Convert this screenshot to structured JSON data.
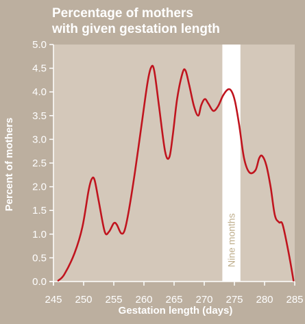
{
  "chart_data": {
    "type": "line",
    "title_lines": [
      "Percentage of mothers",
      "with given gestation length"
    ],
    "xlabel": "Gestation length (days)",
    "ylabel": "Percent of mothers",
    "xlim": [
      245,
      285
    ],
    "ylim": [
      0,
      5
    ],
    "xticks": [
      245,
      250,
      255,
      260,
      265,
      270,
      275,
      280,
      285
    ],
    "yticks": [
      "0.0",
      "0.5",
      "1.0",
      "1.5",
      "2.0",
      "2.5",
      "3.0",
      "3.5",
      "4.0",
      "4.5",
      "5.0"
    ],
    "highlight_band": {
      "from": 273,
      "to": 276,
      "label": "Nine months"
    },
    "colors": {
      "background": "#bcaf9f",
      "plot_area": "#d4c8ba",
      "line": "#c0141e",
      "band": "#ffffff",
      "band_label": "#bfae8c"
    },
    "series": [
      {
        "x": [
          245.8,
          246.8,
          248.5,
          249.8,
          250.8,
          251.3,
          251.8,
          252.5,
          253.5,
          254.2,
          255.0,
          255.5,
          256.2,
          256.8,
          257.5,
          258.5,
          259.6,
          260.6,
          261.2,
          261.7,
          262.5,
          263.5,
          264.2,
          264.8,
          265.5,
          266.4,
          266.9,
          267.5,
          268.3,
          269.0,
          269.5,
          270.1,
          270.7,
          271.5,
          272.3,
          273.1,
          273.9,
          274.5,
          275.1,
          275.8,
          276.6,
          277.5,
          278.5,
          279.1,
          279.6,
          280.3,
          281.0,
          281.7,
          282.4,
          283.0,
          284.0,
          284.8
        ],
        "y": [
          0.02,
          0.15,
          0.6,
          1.15,
          1.9,
          2.15,
          2.15,
          1.7,
          1.05,
          1.05,
          1.23,
          1.2,
          1.02,
          1.08,
          1.5,
          2.3,
          3.3,
          4.2,
          4.52,
          4.45,
          3.7,
          2.75,
          2.62,
          3.1,
          3.85,
          4.4,
          4.45,
          4.15,
          3.7,
          3.5,
          3.72,
          3.85,
          3.75,
          3.6,
          3.7,
          3.92,
          4.05,
          4.02,
          3.8,
          3.3,
          2.6,
          2.3,
          2.35,
          2.6,
          2.65,
          2.45,
          2.0,
          1.4,
          1.25,
          1.2,
          0.6,
          0.02
        ]
      }
    ]
  }
}
